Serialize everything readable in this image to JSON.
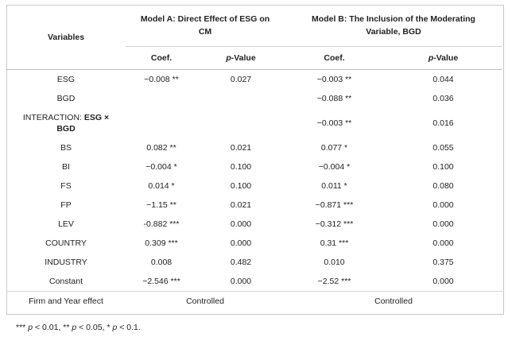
{
  "header": {
    "variables": "Variables",
    "model_a": "Model A: Direct Effect of ESG on CM",
    "model_b": "Model B: The Inclusion of the Moderating Variable, BGD",
    "coef": "Coef.",
    "p_italic": "p",
    "p_rest": "-Value"
  },
  "rows": [
    {
      "var": "ESG",
      "a_coef": "−0.008 **",
      "a_p": "0.027",
      "b_coef": "−0.003 **",
      "b_p": "0.044"
    },
    {
      "var": "BGD",
      "a_coef": "",
      "a_p": "",
      "b_coef": "−0.088 **",
      "b_p": "0.036"
    },
    {
      "var_prefix": "INTERACTION: ",
      "var_bold": "ESG × BGD",
      "a_coef": "",
      "a_p": "",
      "b_coef": "−0.003 **",
      "b_p": "0.016"
    },
    {
      "var": "BS",
      "a_coef": "0.082 **",
      "a_p": "0.021",
      "b_coef": "0.077 *",
      "b_p": "0.055"
    },
    {
      "var": "BI",
      "a_coef": "−0.004 *",
      "a_p": "0.100",
      "b_coef": "−0.004 *",
      "b_p": "0.100"
    },
    {
      "var": "FS",
      "a_coef": "0.014 *",
      "a_p": "0.100",
      "b_coef": "0.011 *",
      "b_p": "0.080"
    },
    {
      "var": "FP",
      "a_coef": "−1.15 **",
      "a_p": "0.021",
      "b_coef": "−0.871 ***",
      "b_p": "0.000"
    },
    {
      "var": "LEV",
      "a_coef": "-0.882 ***",
      "a_p": "0.000",
      "b_coef": "−0.312 ***",
      "b_p": "0.000"
    },
    {
      "var": "COUNTRY",
      "a_coef": "0.309 ***",
      "a_p": "0.000",
      "b_coef": "0.31 ***",
      "b_p": "0.000"
    },
    {
      "var": "INDUSTRY",
      "a_coef": "0.008",
      "a_p": "0.482",
      "b_coef": "0.010",
      "b_p": "0.375"
    },
    {
      "var": "Constant",
      "a_coef": "−2.546 ***",
      "a_p": "0.000",
      "b_coef": "−2.52 ***",
      "b_p": "0.000"
    }
  ],
  "effects_row": {
    "var": "Firm and Year effect",
    "a": "Controlled",
    "b": "Controlled"
  },
  "footnote": {
    "s1": "*** ",
    "p1": "p",
    "t1": " < 0.01, ** ",
    "p2": "p",
    "t2": " < 0.05, * ",
    "p3": "p",
    "t3": " < 0.1."
  }
}
